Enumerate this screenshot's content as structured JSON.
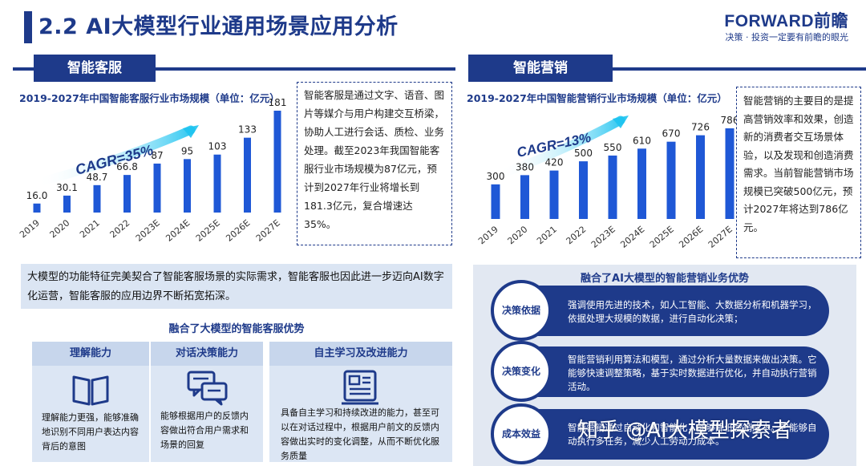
{
  "header": {
    "title": "2.2 AI大模型行业通用场景应用分析",
    "brand_name": "FORWARD前瞻",
    "brand_slogan": "决策 · 投资一定要有前瞻的眼光"
  },
  "left": {
    "tab": "智能客服",
    "description": "智能客服是通过文字、语音、图片等媒介与用户构建交互桥梁，协助人工进行会话、质检、业务处理。截至2023年我国智能客服行业市场规模为87亿元，预计到2027年行业将增长到181.3亿元，复合增速达35%。",
    "summary": "大模型的功能特征完美契合了智能客服场景的实际需求，智能客服也因此进一步迈向AI数字化运营，智能客服的应用边界不断拓宽拓深。",
    "advantages_title": "融合了大模型的智能客服优势",
    "cards": [
      {
        "title": "理解能力",
        "icon": "book-icon",
        "text": "理解能力更强，能够准确地识别不同用户表达内容背后的意图"
      },
      {
        "title": "对话决策能力",
        "icon": "chat-icon",
        "text": "能够根据用户的反馈内容做出符合用户需求和场景的回复"
      },
      {
        "title": "自主学习及改进能力",
        "icon": "document-icon",
        "text": "具备自主学习和持续改进的能力，甚至可以在对话过程中，根据用户前文的反馈内容做出实时的变化调整，从而不断优化服务质量"
      }
    ]
  },
  "right": {
    "tab": "智能营销",
    "description": "智能营销的主要目的是提高营销效率和效果，创造新的消费者交互场景体验，以及发现和创造消费需求。当前智能营销市场规模已突破500亿元，预计2027年将达到786亿元。",
    "advantages_title": "融合了AI大模型的智能营销业务优势",
    "rows": [
      {
        "label": "决策依据",
        "text": "强调使用先进的技术，如人工智能、大数据分析和机器学习，依据处理大规模的数据，进行自动化决策；"
      },
      {
        "label": "决策变化",
        "text": "智能营销利用算法和模型，通过分析大量数据来做出决策。它能够快速调整策略，基于实时数据进行优化，并自动执行营销活动。"
      },
      {
        "label": "成本效益",
        "text": "智能营销通过自动化和智能化，能够降低营销成本。它能够自动执行多任务，减少人工劳动力成本。"
      }
    ]
  },
  "watermark": "知乎 @AI大模型探索者",
  "colors": {
    "primary": "#1e3a8a",
    "bar": "#1f58d6",
    "panel": "#dbe5f3"
  },
  "chart_data": [
    {
      "type": "bar",
      "title": "2019-2027年中国智能客服行业市场规模（单位：亿元）",
      "categories": [
        "2019",
        "2020",
        "2021",
        "2022",
        "2023E",
        "2024E",
        "2025E",
        "2026E",
        "2027E"
      ],
      "values": [
        16.0,
        30.1,
        48.7,
        66.8,
        87,
        95,
        103,
        133,
        181
      ],
      "value_labels": [
        "16.0",
        "30.1",
        "48.7",
        "66.8",
        "87",
        "95",
        "103",
        "133",
        "181"
      ],
      "annotation": "CAGR=35%",
      "ylim": [
        0,
        181
      ]
    },
    {
      "type": "bar",
      "title": "2019-2027年中国智能营销行业市场规模（单位：亿元）",
      "categories": [
        "2019",
        "2020",
        "2021",
        "2022",
        "2023E",
        "2024E",
        "2025E",
        "2026E",
        "2027E"
      ],
      "values": [
        300,
        380,
        420,
        500,
        550,
        610,
        670,
        726,
        786
      ],
      "value_labels": [
        "300",
        "380",
        "420",
        "500",
        "550",
        "610",
        "670",
        "726",
        "786"
      ],
      "annotation": "CAGR=13%",
      "ylim": [
        0,
        786
      ]
    }
  ]
}
